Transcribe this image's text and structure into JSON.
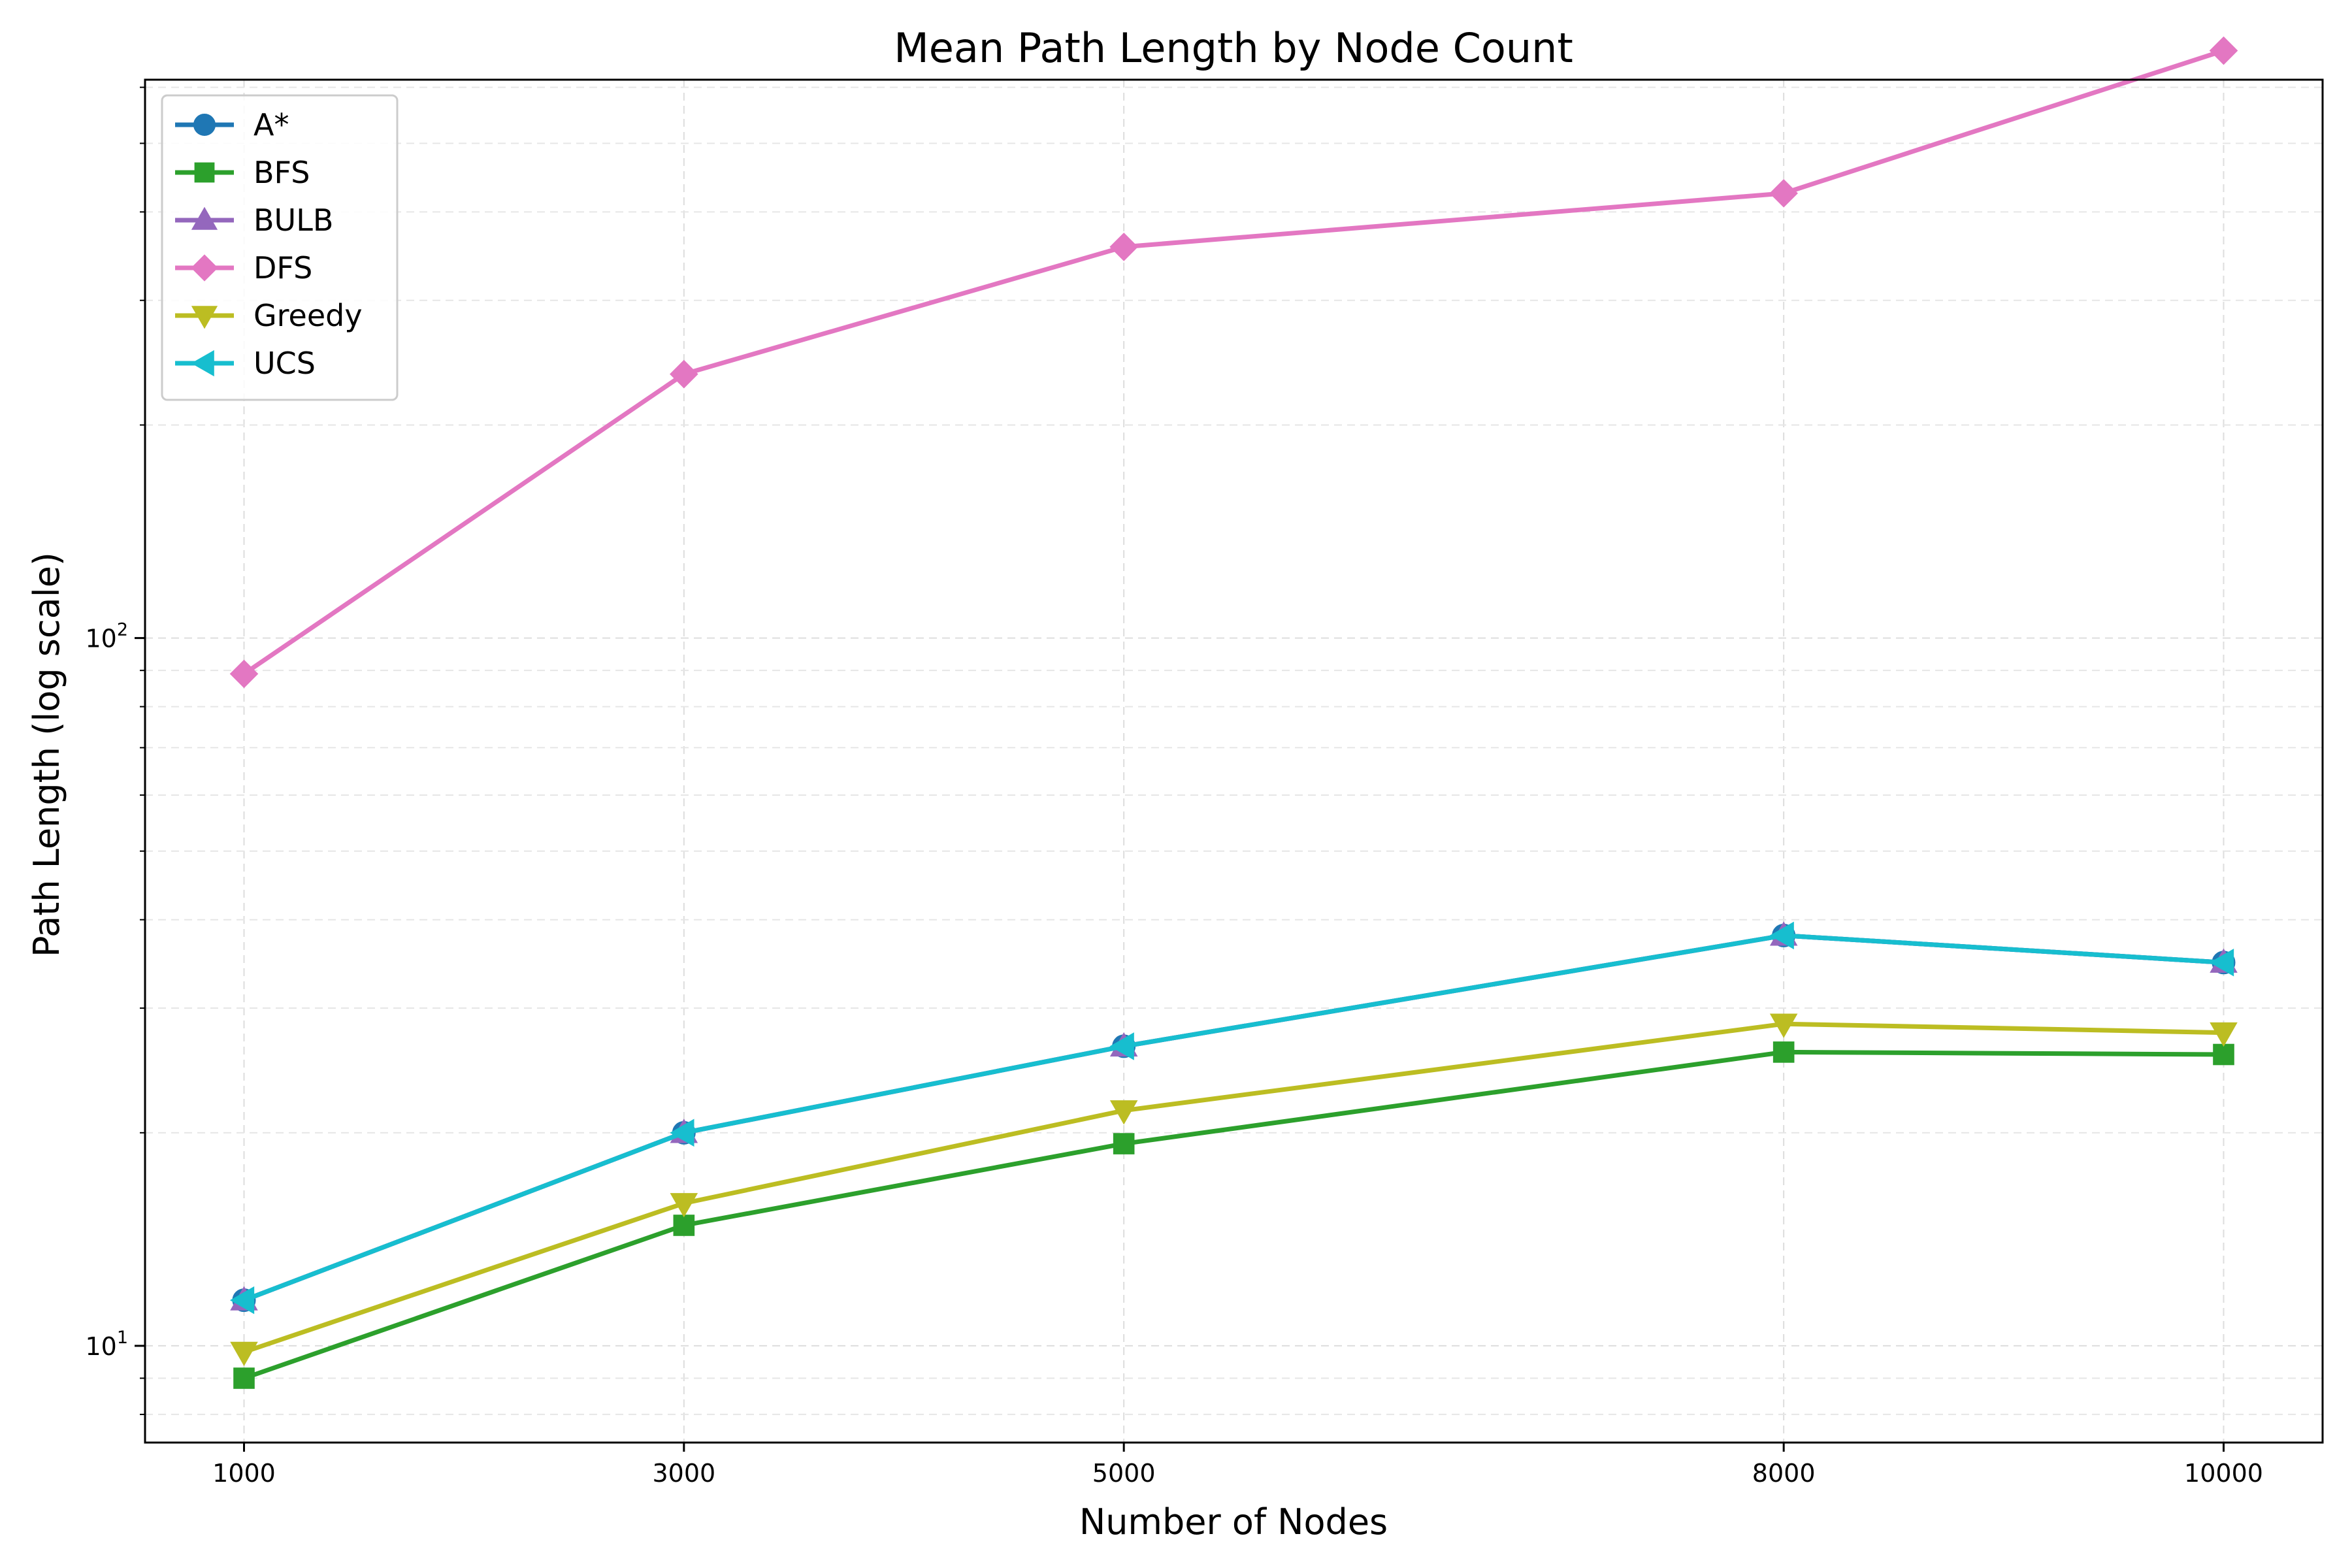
{
  "chart_data": {
    "type": "line",
    "title": "Mean Path Length by Node Count",
    "xlabel": "Number of Nodes",
    "ylabel": "Path Length (log scale)",
    "yscale": "log",
    "x": [
      1000,
      3000,
      5000,
      8000,
      10000
    ],
    "x_ticks": [
      "1000",
      "3000",
      "5000",
      "8000",
      10000
    ],
    "xlim": [
      550,
      10450
    ],
    "ylim": [
      7.3,
      615
    ],
    "y_ticks": [
      {
        "base": "10",
        "exp": "1",
        "value": 10
      },
      {
        "base": "10",
        "exp": "2",
        "value": 100
      }
    ],
    "grid": true,
    "legend": "top-left",
    "series": [
      {
        "name": "A*",
        "color": "#1f77b4",
        "marker": "circle",
        "values": [
          11.6,
          20.0,
          26.5,
          38.0,
          34.8
        ]
      },
      {
        "name": "BFS",
        "color": "#2ca02c",
        "marker": "square",
        "values": [
          9.0,
          14.8,
          19.3,
          26.0,
          25.8
        ]
      },
      {
        "name": "BULB",
        "color": "#9467bd",
        "marker": "triangle-up",
        "values": [
          11.6,
          20.0,
          26.5,
          38.0,
          34.8
        ]
      },
      {
        "name": "DFS",
        "color": "#e377c2",
        "marker": "diamond",
        "values": [
          89,
          236,
          357,
          425,
          676
        ]
      },
      {
        "name": "Greedy",
        "color": "#bcbd22",
        "marker": "triangle-down",
        "values": [
          9.8,
          15.9,
          21.5,
          28.5,
          27.7
        ]
      },
      {
        "name": "UCS",
        "color": "#17becf",
        "marker": "triangle-left",
        "values": [
          11.6,
          20.0,
          26.5,
          38.0,
          34.8
        ]
      }
    ]
  }
}
